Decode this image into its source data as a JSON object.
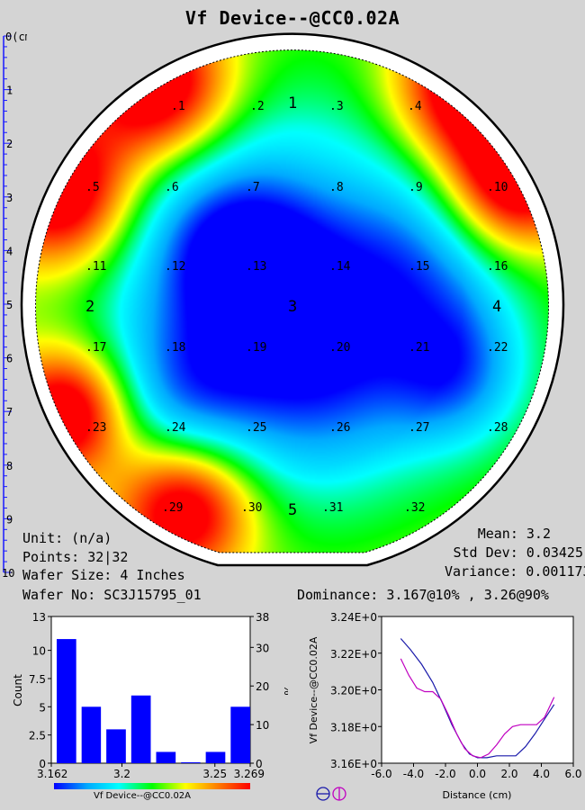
{
  "title": "Vf Device--@CC0.02A",
  "ruler": {
    "unit_label": "0(cm)",
    "ticks": [
      "1",
      "2",
      "3",
      "4",
      "5",
      "6",
      "7",
      "8",
      "9",
      "10"
    ]
  },
  "wafer_map": {
    "points": [
      {
        "label": ".1"
      },
      {
        "label": ".2"
      },
      {
        "label": ".3"
      },
      {
        "label": ".4"
      },
      {
        "label": ".5"
      },
      {
        "label": ".6"
      },
      {
        "label": ".7"
      },
      {
        "label": ".8"
      },
      {
        "label": ".9"
      },
      {
        "label": ".10"
      },
      {
        "label": ".11"
      },
      {
        "label": ".12"
      },
      {
        "label": ".13"
      },
      {
        "label": ".14"
      },
      {
        "label": ".15"
      },
      {
        "label": ".16"
      },
      {
        "label": ".17"
      },
      {
        "label": ".18"
      },
      {
        "label": ".19"
      },
      {
        "label": ".20"
      },
      {
        "label": ".21"
      },
      {
        "label": ".22"
      },
      {
        "label": ".23"
      },
      {
        "label": ".24"
      },
      {
        "label": ".25"
      },
      {
        "label": ".26"
      },
      {
        "label": ".27"
      },
      {
        "label": ".28"
      },
      {
        "label": ".29"
      },
      {
        "label": ".30"
      },
      {
        "label": ".31"
      },
      {
        "label": ".32"
      }
    ],
    "zones": [
      "1",
      "2",
      "3",
      "4",
      "5"
    ]
  },
  "info": {
    "unit": "Unit: (n/a)",
    "points": "Points: 32|32",
    "wafer_size": "Wafer Size: 4 Inches",
    "wafer_no": "Wafer No: SC3J15795_01",
    "mean": "Mean: 3.2",
    "std_dev": "Std Dev: 0.03425",
    "variance": "Variance: 0.001173",
    "dominance": "Dominance: 3.167@10% , 3.26@90%"
  },
  "colors": {
    "bar": "#0000ff",
    "line_x": "#1a1aaa",
    "line_y": "#c000c0",
    "scale": [
      "#0000ff",
      "#00aaff",
      "#00ffff",
      "#00ff00",
      "#ffff00",
      "#ff8000",
      "#ff0000"
    ]
  },
  "chart_data": [
    {
      "type": "bar",
      "x_tick_labels": [
        "3.162",
        "3.2",
        "3.25",
        "3.269"
      ],
      "bin_edges": [
        3.162,
        3.1754,
        3.1887,
        3.2021,
        3.2155,
        3.2289,
        3.2422,
        3.2556,
        3.269
      ],
      "values": [
        11,
        5,
        3,
        6,
        1,
        0,
        1,
        5
      ],
      "ylabel": "Count",
      "ylabel_right": "%",
      "xlabel": "Vf Device--@CC0.02A",
      "ylim": [
        0,
        13
      ],
      "ylim_right": [
        0,
        38
      ],
      "y_tick_labels": [
        "0",
        "2.5",
        "5",
        "7.5",
        "10",
        "13"
      ],
      "y_right_tick_labels": [
        "0",
        "10",
        "20",
        "30",
        "38"
      ]
    },
    {
      "type": "line",
      "xlabel": "Distance (cm)",
      "ylabel": "Vf Device--@CC0.02A",
      "xlim": [
        -6,
        6
      ],
      "ylim": [
        3.16,
        3.24
      ],
      "x_tick_labels": [
        "-6.0",
        "-4.0",
        "-2.0",
        "0.0",
        "2.0",
        "4.0",
        "6.0"
      ],
      "y_tick_labels": [
        "3.16E+0",
        "3.18E+0",
        "3.20E+0",
        "3.22E+0",
        "3.24E+0"
      ],
      "series": [
        {
          "x": [
            -4.8,
            -4.2,
            -3.5,
            -2.8,
            -2.2,
            -1.6,
            -1.0,
            -0.5,
            0.0,
            0.6,
            1.2,
            1.8,
            2.4,
            3.0,
            3.6,
            4.2,
            4.8
          ],
          "y": [
            3.228,
            3.222,
            3.214,
            3.204,
            3.193,
            3.181,
            3.171,
            3.165,
            3.163,
            3.163,
            3.164,
            3.164,
            3.164,
            3.169,
            3.176,
            3.184,
            3.192
          ]
        },
        {
          "x": [
            -4.8,
            -4.3,
            -3.8,
            -3.3,
            -2.8,
            -2.3,
            -1.8,
            -1.3,
            -0.8,
            -0.3,
            0.2,
            0.7,
            1.2,
            1.7,
            2.2,
            2.7,
            3.2,
            3.7,
            4.2,
            4.8
          ],
          "y": [
            3.217,
            3.208,
            3.201,
            3.199,
            3.199,
            3.195,
            3.186,
            3.176,
            3.168,
            3.164,
            3.163,
            3.165,
            3.17,
            3.176,
            3.18,
            3.181,
            3.181,
            3.181,
            3.185,
            3.196
          ]
        }
      ]
    }
  ]
}
